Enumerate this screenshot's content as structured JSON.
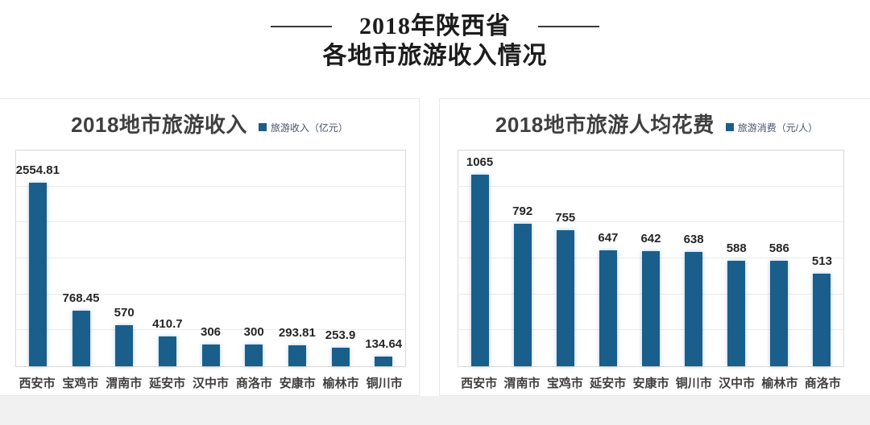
{
  "page": {
    "title_line1": "2018年陕西省",
    "title_line2": "各地市旅游收入情况"
  },
  "colors": {
    "bar": "#1a5e8c",
    "legend_text": "#44546a",
    "gridline": "#ebebeb",
    "footer_strip": "#f1f1f1"
  },
  "chart_data": [
    {
      "type": "bar",
      "title": "2018地市旅游收入",
      "legend": "旅游收入（亿元）",
      "legend_swatch": "square-icon",
      "categories": [
        "西安市",
        "宝鸡市",
        "渭南市",
        "延安市",
        "汉中市",
        "商洛市",
        "安康市",
        "榆林市",
        "铜川市"
      ],
      "values": [
        2554.81,
        768.45,
        570,
        410.7,
        306,
        300,
        293.81,
        253.9,
        134.64
      ],
      "xlabel": "",
      "ylabel": "",
      "ylim": [
        0,
        3000
      ],
      "gridline_step": 500,
      "grid": true,
      "legend_position": "top-right",
      "bar_color": "#1a5e8c"
    },
    {
      "type": "bar",
      "title": "2018地市旅游人均花费",
      "legend": "旅游消费（元/人）",
      "legend_swatch": "square-icon",
      "categories": [
        "西安市",
        "渭南市",
        "宝鸡市",
        "延安市",
        "安康市",
        "铜川市",
        "汉中市",
        "榆林市",
        "商洛市"
      ],
      "values": [
        1065,
        792,
        755,
        647,
        642,
        638,
        588,
        586,
        513
      ],
      "xlabel": "",
      "ylabel": "",
      "ylim": [
        0,
        1200
      ],
      "gridline_step": 200,
      "grid": true,
      "legend_position": "top-right",
      "bar_color": "#1a5e8c"
    }
  ]
}
